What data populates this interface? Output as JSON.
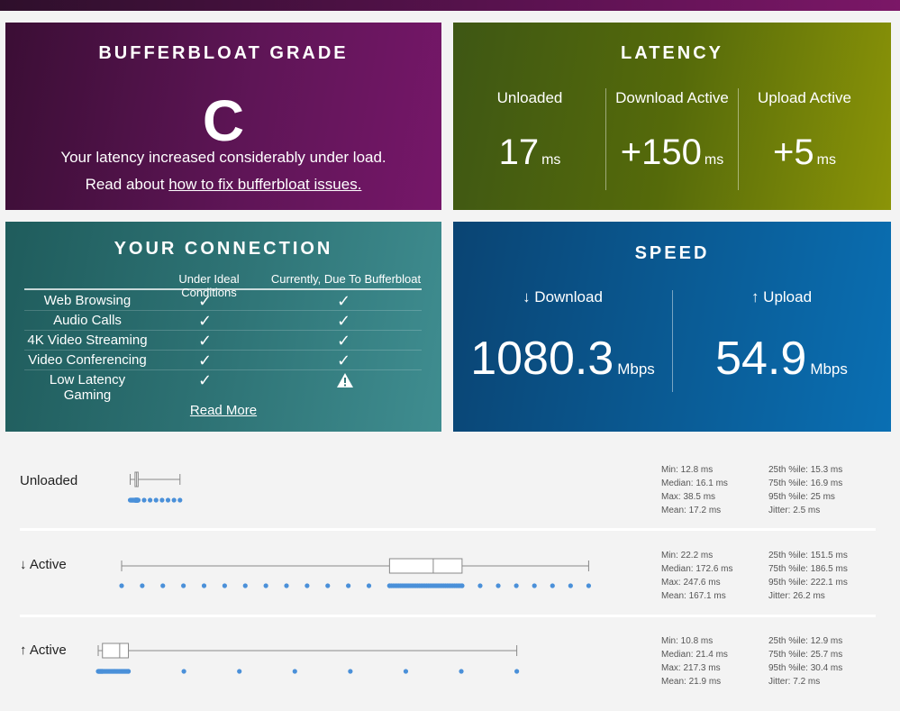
{
  "grade": {
    "title": "BUFFERBLOAT GRADE",
    "letter": "C",
    "message": "Your latency increased considerably under load.",
    "read_prefix": "Read about ",
    "link_text": "how to fix bufferbloat issues."
  },
  "latency": {
    "title": "LATENCY",
    "columns": [
      {
        "label": "Unloaded",
        "value": "17",
        "unit": "ms"
      },
      {
        "label": "Download Active",
        "value": "+150",
        "unit": "ms"
      },
      {
        "label": "Upload Active",
        "value": "+5",
        "unit": "ms"
      }
    ]
  },
  "connection": {
    "title": "YOUR CONNECTION",
    "col_ideal": "Under Ideal Conditions",
    "col_current": "Currently, Due To Bufferbloat",
    "check_glyph": "✓",
    "rows": [
      {
        "label": "Web Browsing",
        "ideal": "check",
        "current": "check"
      },
      {
        "label": "Audio Calls",
        "ideal": "check",
        "current": "check"
      },
      {
        "label": "4K Video Streaming",
        "ideal": "check",
        "current": "check"
      },
      {
        "label": "Video Conferencing",
        "ideal": "check",
        "current": "check"
      },
      {
        "label": "Low Latency Gaming",
        "ideal": "check",
        "current": "warning"
      }
    ],
    "read_more": "Read More"
  },
  "speed": {
    "title": "SPEED",
    "download": {
      "label": "↓ Download",
      "value": "1080.3",
      "unit": "Mbps"
    },
    "upload": {
      "label": "↑ Upload",
      "value": "54.9",
      "unit": "Mbps"
    }
  },
  "stats": [
    {
      "label": "Unloaded",
      "left": [
        "Min: 12.8 ms",
        "Median: 16.1 ms",
        "Max: 38.5 ms",
        "Mean: 17.2 ms"
      ],
      "right": [
        "25th %ile: 15.3 ms",
        "75th %ile: 16.9 ms",
        "95th %ile: 25 ms",
        "Jitter: 2.5 ms"
      ]
    },
    {
      "label": "↓ Active",
      "left": [
        "Min: 22.2 ms",
        "Median: 172.6 ms",
        "Max: 247.6 ms",
        "Mean: 167.1 ms"
      ],
      "right": [
        "25th %ile: 151.5 ms",
        "75th %ile: 186.5 ms",
        "95th %ile: 222.1 ms",
        "Jitter: 26.2 ms"
      ]
    },
    {
      "label": "↑ Active",
      "left": [
        "Min: 10.8 ms",
        "Median: 21.4 ms",
        "Max: 217.3 ms",
        "Mean: 21.9 ms"
      ],
      "right": [
        "25th %ile: 12.9 ms",
        "75th %ile: 25.7 ms",
        "95th %ile: 30.4 ms",
        "Jitter: 7.2 ms"
      ]
    }
  ],
  "colors": {
    "grade_bg": "#5e1556",
    "latency_bg": "#556a0a",
    "connection_bg": "#2e7375",
    "speed_bg": "#0a5a93",
    "dot": "#4a90d9",
    "box_stroke": "#888888"
  }
}
